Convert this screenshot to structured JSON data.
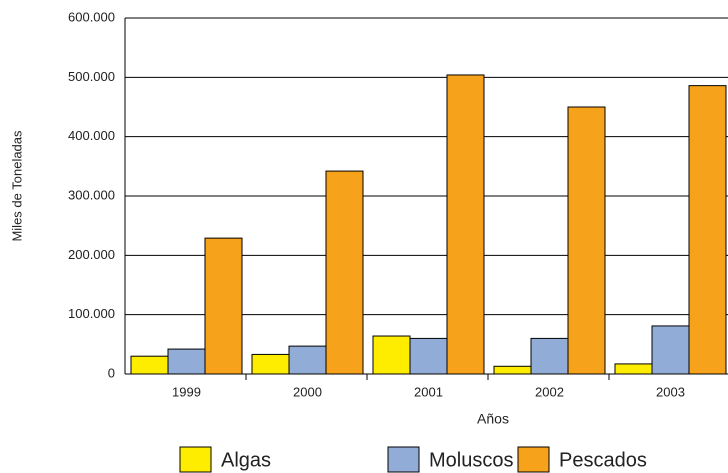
{
  "chart_data": {
    "type": "bar",
    "x_label": "Años",
    "y_label": "Miles de Toneladas",
    "categories": [
      "1999",
      "2000",
      "2001",
      "2002",
      "2003"
    ],
    "series": [
      {
        "name": "Algas",
        "color": "#ffed00",
        "values": [
          30000,
          33000,
          64000,
          13000,
          17000
        ]
      },
      {
        "name": "Moluscos",
        "color": "#92acd8",
        "values": [
          42000,
          47000,
          60000,
          60000,
          81000
        ]
      },
      {
        "name": "Pescados",
        "color": "#f7a21b",
        "values": [
          229000,
          342000,
          504000,
          450000,
          486000
        ]
      }
    ],
    "ylim": [
      0,
      600000
    ],
    "yticks": [
      0,
      {
        "value": 100000,
        "label": "100.000"
      },
      {
        "value": 200000,
        "label": "200.000"
      },
      {
        "value": 300000,
        "label": "300.000"
      },
      {
        "value": 400000,
        "label": "400.000"
      },
      {
        "value": 500000,
        "label": "500.000"
      },
      {
        "value": 600000,
        "label": "600.000"
      }
    ],
    "grid": true
  }
}
